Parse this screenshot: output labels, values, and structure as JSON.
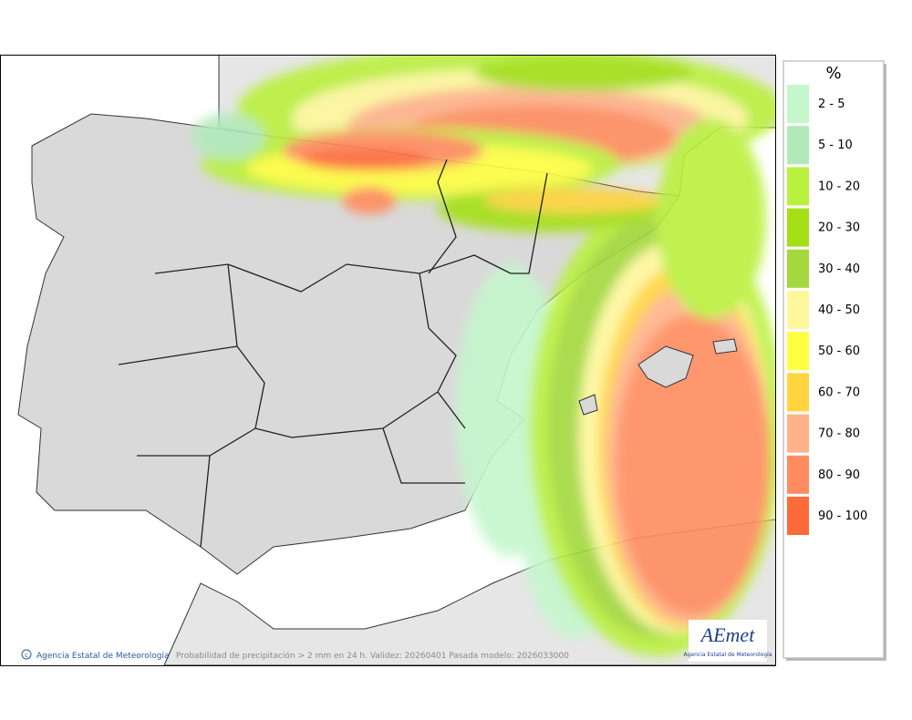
{
  "legend": {
    "title": "%",
    "items": [
      {
        "label": "2 - 5",
        "color": "#c4f7cc"
      },
      {
        "label": "5 - 10",
        "color": "#b2e9b9"
      },
      {
        "label": "10 - 20",
        "color": "#baf03e"
      },
      {
        "label": "20 - 30",
        "color": "#a4e015"
      },
      {
        "label": "30 - 40",
        "color": "#a3d83e"
      },
      {
        "label": "40 - 50",
        "color": "#fff79c"
      },
      {
        "label": "50 - 60",
        "color": "#ffff42"
      },
      {
        "label": "60 - 70",
        "color": "#ffd43e"
      },
      {
        "label": "70 - 80",
        "color": "#ffb28a"
      },
      {
        "label": "80 - 90",
        "color": "#ff8c5e"
      },
      {
        "label": "90 - 100",
        "color": "#ff6a3a"
      }
    ]
  },
  "footer": {
    "credit": "Agencia Estatal de Meteorología",
    "caption": "Probabilidad de precipitación > 2 mm en 24 h. Validez: 20260401 Pasada modelo: 2026033000"
  },
  "logo": {
    "name": "AEmet",
    "subtitle": "Agencia Estatal de Meteorología"
  }
}
